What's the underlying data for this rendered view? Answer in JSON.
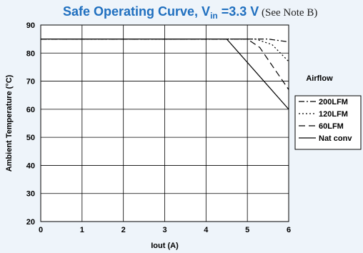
{
  "title": {
    "main": "Safe Operating Curve, V",
    "subscript": "in",
    "main_after": " =3.3 V",
    "note": " (See Note B)"
  },
  "colors": {
    "background": "#eef4fa",
    "title": "#1f6fbf",
    "plot_bg": "#ffffff",
    "line": "#000000"
  },
  "chart_data": {
    "type": "line",
    "xlabel": "Iout (A)",
    "ylabel": "Ambient Temperature (°C)",
    "xlim": [
      0,
      6
    ],
    "ylim": [
      20,
      90
    ],
    "xticks": [
      0,
      1,
      2,
      3,
      4,
      5,
      6
    ],
    "yticks": [
      20,
      30,
      40,
      50,
      60,
      70,
      80,
      90
    ],
    "grid": true,
    "legend_title": "Airflow",
    "legend_position": "right",
    "series": [
      {
        "name": "200LFM",
        "dash": "dash-dot",
        "x": [
          0,
          5.5,
          6.0
        ],
        "y": [
          85,
          85,
          84
        ]
      },
      {
        "name": "120LFM",
        "dash": "dotted",
        "x": [
          0,
          5.2,
          5.6,
          6.0
        ],
        "y": [
          85,
          85,
          83,
          77
        ]
      },
      {
        "name": "60LFM",
        "dash": "dashed",
        "x": [
          0,
          5.0,
          5.3,
          6.0
        ],
        "y": [
          85,
          85,
          82,
          67
        ]
      },
      {
        "name": "Nat conv",
        "dash": "solid",
        "x": [
          0,
          4.5,
          6.0
        ],
        "y": [
          85,
          85,
          60
        ]
      }
    ]
  }
}
